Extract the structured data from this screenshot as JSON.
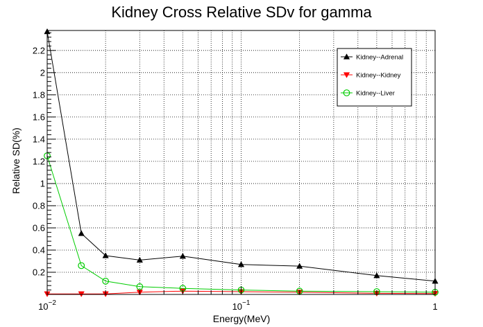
{
  "chart_data": {
    "type": "line",
    "title": "Kidney Cross Relative SDv for gamma",
    "xlabel": "Energy(MeV)",
    "ylabel": "Relative SD(%)",
    "xscale": "log",
    "xlim": [
      0.01,
      1
    ],
    "ylim": [
      0,
      2.38
    ],
    "grid": true,
    "legend_position": "top-right",
    "x_tick_labels": [
      {
        "value": 0.01,
        "base": "10",
        "exp": "−2"
      },
      {
        "value": 0.1,
        "base": "10",
        "exp": "−1"
      },
      {
        "value": 1,
        "base": "1",
        "exp": ""
      }
    ],
    "y_ticks": [
      0.2,
      0.4,
      0.6,
      0.8,
      1,
      1.2,
      1.4,
      1.6,
      1.8,
      2,
      2.2
    ],
    "y_tick_labels": [
      "0.2",
      "0.4",
      "0.6",
      "0.8",
      "1",
      "1.2",
      "1.4",
      "1.6",
      "1.8",
      "2",
      "2.2"
    ],
    "x": [
      0.01,
      0.015,
      0.02,
      0.03,
      0.05,
      0.1,
      0.2,
      0.5,
      1
    ],
    "series": [
      {
        "name": "Kidney--Adrenal",
        "color": "#000000",
        "marker": "triangle-up",
        "values": [
          2.37,
          0.55,
          0.35,
          0.31,
          0.345,
          0.27,
          0.255,
          0.17,
          0.12
        ]
      },
      {
        "name": "Kidney--Kidney",
        "color": "#ff0000",
        "marker": "triangle-down",
        "values": [
          0.005,
          0.005,
          0.005,
          0.02,
          0.03,
          0.025,
          0.02,
          0.01,
          0.008
        ]
      },
      {
        "name": "Kidney--Liver",
        "color": "#00cc00",
        "marker": "circle-open",
        "values": [
          1.25,
          0.26,
          0.12,
          0.07,
          0.055,
          0.04,
          0.03,
          0.025,
          0.02
        ]
      }
    ]
  }
}
